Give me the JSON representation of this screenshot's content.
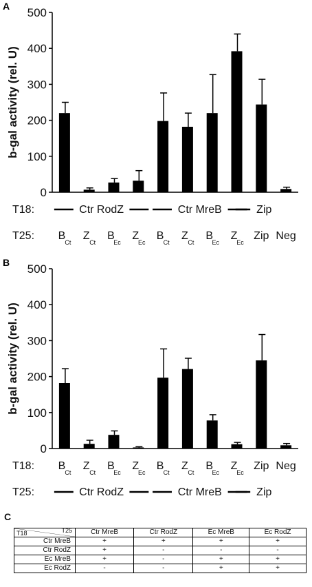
{
  "chart_data": [
    {
      "panel": "A",
      "type": "bar",
      "ylabel": "b-gal activity (rel. U)",
      "ylim": [
        0,
        500
      ],
      "yticks": [
        "0",
        "100",
        "200",
        "300",
        "400",
        "500"
      ],
      "categories": [
        {
          "main": "B",
          "sub": "Ct"
        },
        {
          "main": "Z",
          "sub": "Ct"
        },
        {
          "main": "B",
          "sub": "Ec"
        },
        {
          "main": "Z",
          "sub": "Ec"
        },
        {
          "main": "B",
          "sub": "Ct"
        },
        {
          "main": "Z",
          "sub": "Ct"
        },
        {
          "main": "B",
          "sub": "Ec"
        },
        {
          "main": "Z",
          "sub": "Ec"
        },
        {
          "main": "Zip",
          "sub": ""
        },
        {
          "main": "Neg",
          "sub": ""
        }
      ],
      "values": [
        220,
        7,
        27,
        32,
        198,
        182,
        220,
        392,
        244,
        9
      ],
      "errors": [
        30,
        5,
        11,
        28,
        78,
        38,
        107,
        48,
        70,
        5
      ],
      "row1_label": "T18:",
      "row1_groups": [
        "Ctr RodZ",
        "Ctr MreB",
        "Zip"
      ],
      "row2_label": "T25:"
    },
    {
      "panel": "B",
      "type": "bar",
      "ylabel": "b-gal activity (rel. U)",
      "ylim": [
        0,
        500
      ],
      "yticks": [
        "0",
        "100",
        "200",
        "300",
        "400",
        "500"
      ],
      "categories": [
        {
          "main": "B",
          "sub": "Ct"
        },
        {
          "main": "Z",
          "sub": "Ct"
        },
        {
          "main": "B",
          "sub": "Ec"
        },
        {
          "main": "Z",
          "sub": "Ec"
        },
        {
          "main": "B",
          "sub": "Ct"
        },
        {
          "main": "Z",
          "sub": "Ct"
        },
        {
          "main": "B",
          "sub": "Ec"
        },
        {
          "main": "Z",
          "sub": "Ec"
        },
        {
          "main": "Zip",
          "sub": ""
        },
        {
          "main": "Neg",
          "sub": ""
        }
      ],
      "values": [
        182,
        13,
        38,
        3,
        197,
        221,
        78,
        12,
        245,
        9
      ],
      "errors": [
        40,
        10,
        11,
        2,
        80,
        30,
        16,
        5,
        72,
        5
      ],
      "row1_label": "T18:",
      "row2_label": "T25:",
      "row2_groups": [
        "Ctr RodZ",
        "Ctr MreB",
        "Zip"
      ]
    }
  ],
  "table": {
    "panel": "C",
    "corner_row": "T18",
    "corner_col": "T25",
    "columns": [
      "Ctr MreB",
      "Ctr RodZ",
      "Ec MreB",
      "Ec RodZ"
    ],
    "rows": [
      {
        "label": "Ctr MreB",
        "cells": [
          "+",
          "+",
          "+",
          "+"
        ]
      },
      {
        "label": "Ctr RodZ",
        "cells": [
          "+",
          "-",
          "-",
          "-"
        ]
      },
      {
        "label": "Ec MreB",
        "cells": [
          "+",
          "-",
          "+",
          "+"
        ]
      },
      {
        "label": "Ec RodZ",
        "cells": [
          "-",
          "-",
          "+",
          "+"
        ]
      }
    ]
  }
}
